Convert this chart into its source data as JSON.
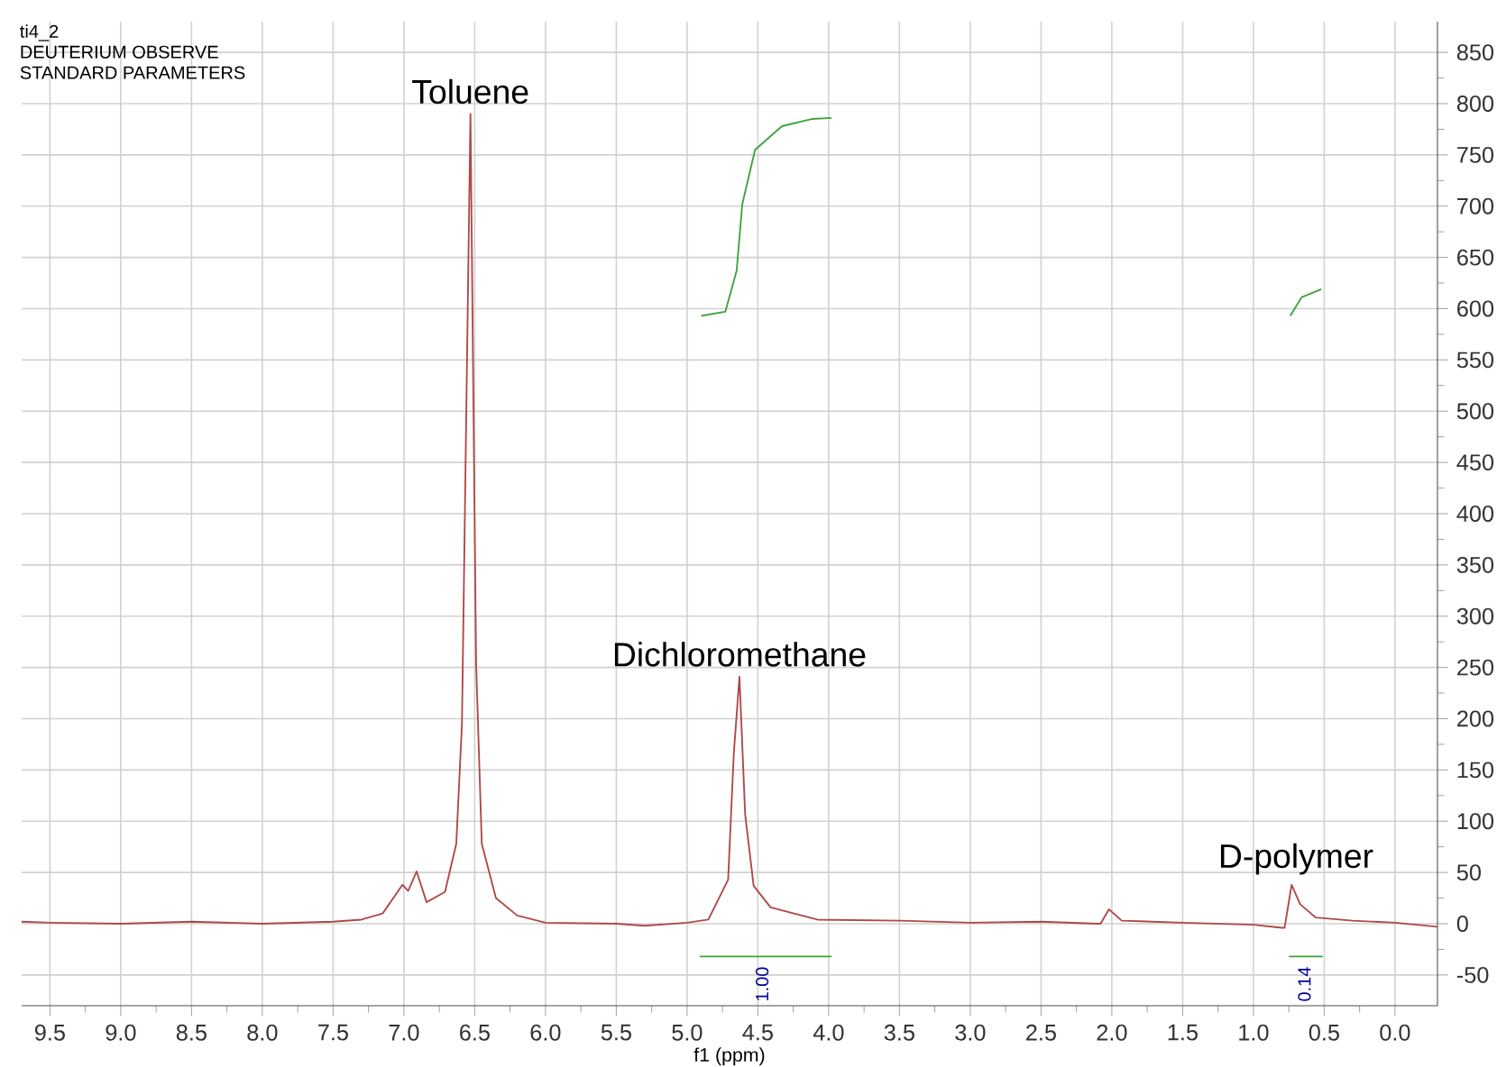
{
  "chart_data": {
    "type": "line",
    "title": "ti4_2",
    "xlabel": "f1 (ppm)",
    "xlim": [
      9.7,
      -0.3
    ],
    "ylim": [
      -80,
      880
    ],
    "xticks": [
      {
        "value": 9.5,
        "label": "9.5"
      },
      {
        "value": 9.0,
        "label": "9.0"
      },
      {
        "value": 8.5,
        "label": "8.5"
      },
      {
        "value": 8.0,
        "label": "8.0"
      },
      {
        "value": 7.5,
        "label": "7.5"
      },
      {
        "value": 7.0,
        "label": "7.0"
      },
      {
        "value": 6.5,
        "label": "6.5"
      },
      {
        "value": 6.0,
        "label": "6.0"
      },
      {
        "value": 5.5,
        "label": "5.5"
      },
      {
        "value": 5.0,
        "label": "5.0"
      },
      {
        "value": 4.5,
        "label": "4.5"
      },
      {
        "value": 4.0,
        "label": "4.0"
      },
      {
        "value": 3.5,
        "label": "3.5"
      },
      {
        "value": 3.0,
        "label": "3.0"
      },
      {
        "value": 2.5,
        "label": "2.5"
      },
      {
        "value": 2.0,
        "label": "2.0"
      },
      {
        "value": 1.5,
        "label": "1.5"
      },
      {
        "value": 1.0,
        "label": "1.0"
      },
      {
        "value": 0.5,
        "label": "0.5"
      },
      {
        "value": 0.0,
        "label": "0.0"
      }
    ],
    "yticks": [
      -50,
      0,
      50,
      100,
      150,
      200,
      250,
      300,
      350,
      400,
      450,
      500,
      550,
      600,
      650,
      700,
      750,
      800,
      850
    ],
    "grid": true,
    "series": [
      {
        "color": "#b04848",
        "x": [
          9.7,
          9.5,
          9.0,
          8.5,
          8.0,
          7.5,
          7.3,
          7.15,
          7.01,
          6.97,
          6.91,
          6.84,
          6.71,
          6.63,
          6.59,
          6.53,
          6.49,
          6.45,
          6.35,
          6.2,
          6.0,
          5.5,
          5.3,
          5.0,
          4.85,
          4.71,
          4.67,
          4.63,
          4.59,
          4.53,
          4.41,
          4.08,
          3.5,
          3.0,
          2.5,
          2.1,
          2.08,
          2.02,
          1.93,
          1.5,
          1.0,
          0.8,
          0.78,
          0.73,
          0.67,
          0.56,
          0.3,
          0.0,
          -0.3
        ],
        "values": [
          2,
          1,
          0,
          2,
          0,
          2,
          4,
          10,
          38,
          32,
          51,
          21,
          31,
          78,
          195,
          790,
          254,
          78,
          25,
          8,
          1,
          0,
          -2,
          1,
          4,
          43,
          166,
          241,
          107,
          37,
          16,
          4,
          3,
          1,
          2,
          0,
          0,
          14,
          3,
          1,
          -1,
          -4,
          -4,
          38,
          19,
          6,
          3,
          1,
          -3
        ]
      },
      {
        "color": "#3fa33f",
        "x": [
          4.9,
          4.73,
          4.65,
          4.61,
          4.52,
          4.33,
          4.12,
          3.98
        ],
        "values": [
          593,
          597,
          637,
          702,
          755,
          778,
          785,
          786
        ]
      },
      {
        "color": "#3fa33f",
        "x": [
          0.74,
          0.66,
          0.52
        ],
        "values": [
          593,
          611,
          619
        ]
      },
      {
        "color": "#3fa33f",
        "x": [
          4.91,
          3.98
        ],
        "values": [
          -32,
          -32
        ]
      },
      {
        "color": "#3fa33f",
        "x": [
          0.75,
          0.51
        ],
        "values": [
          -32,
          -32
        ]
      }
    ],
    "annotations": [
      "DEUTERIUM OBSERVE",
      "STANDARD PARAMETERS",
      {
        "text": "Toluene",
        "x": 6.53,
        "y": 790
      },
      {
        "text": "Dichloromethane",
        "x": 4.63,
        "y": 241
      },
      {
        "text": "D-polymer",
        "x": 0.7,
        "y": 38
      },
      {
        "text": "1.00",
        "x": 4.47,
        "y": -32
      },
      {
        "text": "0.14",
        "x": 0.64,
        "y": -32
      }
    ]
  }
}
